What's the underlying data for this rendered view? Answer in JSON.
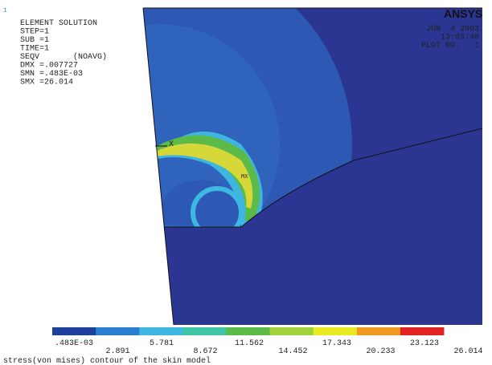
{
  "window_number": "1",
  "logo": "ANSYS",
  "info": [
    "ELEMENT SOLUTION",
    "STEP=1",
    "SUB =1",
    "TIME=1",
    "SEQV       (NOAVG)",
    "DMX =.007727",
    "SMN =.483E-03",
    "SMX =26.014"
  ],
  "stamp": [
    "JUN  4 2003",
    "13:03:40",
    "PLOT NO.   1"
  ],
  "axis_label": "X",
  "max_marker": "MX",
  "legend": {
    "colors": [
      "#1e3f9c",
      "#2a7ed0",
      "#3eb8e2",
      "#3fc4a4",
      "#5cba48",
      "#a0d23a",
      "#eaea22",
      "#f09a22",
      "#e02424"
    ],
    "labels": [
      ".483E-03",
      "2.891",
      "5.781",
      "8.672",
      "11.562",
      "14.452",
      "17.343",
      "20.233",
      "23.123",
      "26.014"
    ]
  },
  "caption": "stress(von mises) contour of the skin model"
}
